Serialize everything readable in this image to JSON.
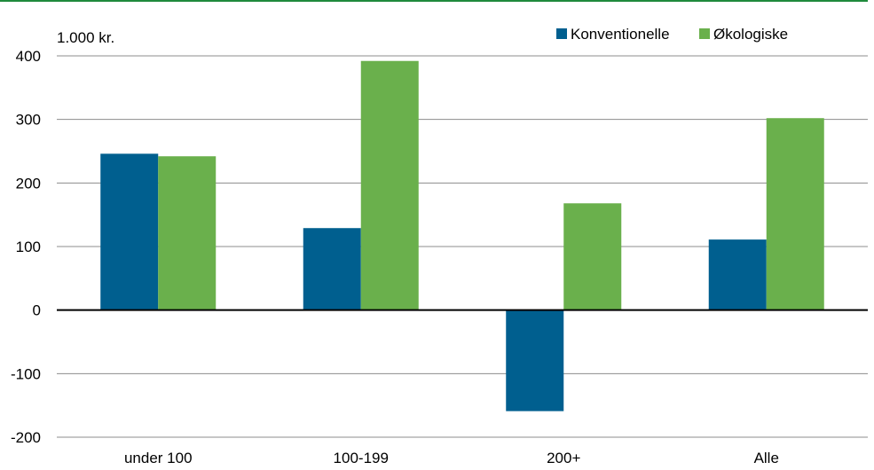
{
  "chart_data": {
    "type": "bar",
    "unit_label": "1.000 kr.",
    "categories": [
      "under 100",
      "100-199",
      "200+",
      "Alle"
    ],
    "series": [
      {
        "name": "Konventionelle",
        "color": "#005f8f",
        "values": [
          246,
          129,
          -159,
          111
        ]
      },
      {
        "name": "Økologiske",
        "color": "#6ab04c",
        "values": [
          242,
          392,
          168,
          302
        ]
      }
    ],
    "y_ticks": [
      "400",
      "300",
      "200",
      "100",
      "0",
      "-100",
      "-200"
    ],
    "ylim": [
      -200,
      400
    ],
    "grid": true,
    "legend_position": "top-right",
    "top_rule_color": "#1f8a3c"
  }
}
